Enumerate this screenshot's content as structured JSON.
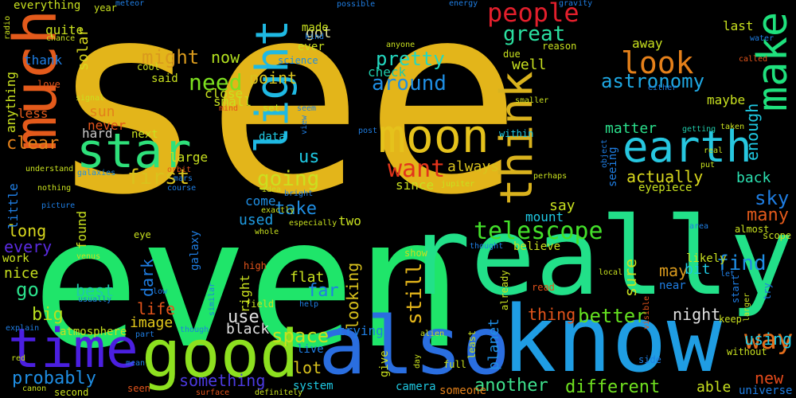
{
  "words": [
    {
      "text": "see",
      "color": "#e3b51a"
    },
    {
      "text": "even",
      "color": "#1fe56a"
    },
    {
      "text": "really",
      "color": "#22e089"
    },
    {
      "text": "know",
      "color": "#1f9de3"
    },
    {
      "text": "also",
      "color": "#2a6ee0"
    },
    {
      "text": "good",
      "color": "#8de01f"
    },
    {
      "text": "much",
      "color": "#e35a1b"
    },
    {
      "text": "time",
      "color": "#4b1fe0"
    },
    {
      "text": "star",
      "color": "#2ee07a"
    },
    {
      "text": "moon",
      "color": "#e5c21c"
    },
    {
      "text": "earth",
      "color": "#27c7e0"
    },
    {
      "text": "make",
      "color": "#1fe07d"
    },
    {
      "text": "think",
      "color": "#d9b21d"
    },
    {
      "text": "light",
      "color": "#1fb9e3"
    },
    {
      "text": "look",
      "color": "#e5801a"
    },
    {
      "text": "people",
      "color": "#e31f2c"
    },
    {
      "text": "want",
      "color": "#e3341b"
    },
    {
      "text": "telescope",
      "color": "#43e02a"
    },
    {
      "text": "way",
      "color": "#e36d1b"
    },
    {
      "text": "astronomy",
      "color": "#1fa8e3"
    },
    {
      "text": "pretty",
      "color": "#23d8c0"
    },
    {
      "text": "around",
      "color": "#1f8ee3"
    },
    {
      "text": "great",
      "color": "#2be0a0"
    },
    {
      "text": "need",
      "color": "#7de01f"
    },
    {
      "text": "might",
      "color": "#d99a1d"
    },
    {
      "text": "now",
      "color": "#b2e01f"
    },
    {
      "text": "first",
      "color": "#d9c21d"
    },
    {
      "text": "going",
      "color": "#cbe01f"
    },
    {
      "text": "better",
      "color": "#64e01f"
    },
    {
      "text": "probably",
      "color": "#1f8ee3"
    },
    {
      "text": "clear",
      "color": "#e3801a"
    },
    {
      "text": "still",
      "color": "#e3b51a"
    },
    {
      "text": "something",
      "color": "#4b3ae0"
    },
    {
      "text": "another",
      "color": "#3ee08c"
    },
    {
      "text": "different",
      "color": "#6fe01f"
    },
    {
      "text": "space",
      "color": "#c8e01f"
    },
    {
      "text": "take",
      "color": "#1f8ee3"
    },
    {
      "text": "sky",
      "color": "#1f7ee3"
    },
    {
      "text": "many",
      "color": "#e35a1b"
    },
    {
      "text": "find",
      "color": "#1f8ee3"
    },
    {
      "text": "actually",
      "color": "#d9d81d"
    },
    {
      "text": "back",
      "color": "#2be0b0"
    },
    {
      "text": "enough",
      "color": "#1fc9e3"
    },
    {
      "text": "matter",
      "color": "#2be08c"
    },
    {
      "text": "night",
      "color": "#e0e0e0"
    },
    {
      "text": "thing",
      "color": "#e3541b"
    },
    {
      "text": "new",
      "color": "#e34a1b"
    },
    {
      "text": "able",
      "color": "#c8e01f"
    },
    {
      "text": "using",
      "color": "#1fc9e3"
    },
    {
      "text": "universe",
      "color": "#1f7ee3"
    },
    {
      "text": "lot",
      "color": "#d9c21d"
    },
    {
      "text": "life",
      "color": "#e3541b"
    },
    {
      "text": "image",
      "color": "#e3c81a"
    },
    {
      "text": "go",
      "color": "#2be08c"
    },
    {
      "text": "long",
      "color": "#d9d81d"
    },
    {
      "text": "every",
      "color": "#5a2be0"
    },
    {
      "text": "nice",
      "color": "#c8e01f"
    },
    {
      "text": "big",
      "color": "#b7e01f"
    },
    {
      "text": "best",
      "color": "#1fc9a8"
    },
    {
      "text": "dark",
      "color": "#1f7ee3"
    },
    {
      "text": "may",
      "color": "#d99a1d"
    },
    {
      "text": "sure",
      "color": "#c8e01f"
    },
    {
      "text": "far",
      "color": "#1f7ee3"
    },
    {
      "text": "looking",
      "color": "#d9c21d"
    },
    {
      "text": "use",
      "color": "#e0e0e0"
    },
    {
      "text": "black",
      "color": "#e0e0e0"
    },
    {
      "text": "used",
      "color": "#1f9de3"
    },
    {
      "text": "us",
      "color": "#1fc9e3"
    },
    {
      "text": "flat",
      "color": "#c8e01f"
    },
    {
      "text": "point",
      "color": "#d9c21d"
    },
    {
      "text": "got",
      "color": "#e0e0a0"
    },
    {
      "text": "solar",
      "color": "#d9d81d"
    },
    {
      "text": "sun",
      "color": "#e3801a"
    },
    {
      "text": "never",
      "color": "#e3541b"
    },
    {
      "text": "large",
      "color": "#c8e01f"
    },
    {
      "text": "hard",
      "color": "#c8c8c8"
    },
    {
      "text": "next",
      "color": "#c8e01f"
    },
    {
      "text": "said",
      "color": "#c8e01f"
    },
    {
      "text": "close",
      "color": "#c8e01f"
    },
    {
      "text": "small",
      "color": "#c8e01f"
    },
    {
      "text": "well",
      "color": "#c8e01f"
    },
    {
      "text": "check",
      "color": "#1fc9a8"
    },
    {
      "text": "since",
      "color": "#c8e01f"
    },
    {
      "text": "always",
      "color": "#d9c21d"
    },
    {
      "text": "say",
      "color": "#c8e01f"
    },
    {
      "text": "mount",
      "color": "#1fc9e3"
    },
    {
      "text": "bit",
      "color": "#1fc9e3"
    },
    {
      "text": "planet",
      "color": "#1f8ee3"
    },
    {
      "text": "maybe",
      "color": "#c8e01f"
    },
    {
      "text": "last",
      "color": "#c8e01f"
    },
    {
      "text": "away",
      "color": "#c8e01f"
    },
    {
      "text": "made",
      "color": "#c8e01f"
    },
    {
      "text": "ever",
      "color": "#c8e01f"
    },
    {
      "text": "quite",
      "color": "#c8e01f"
    },
    {
      "text": "thank",
      "color": "#1f7ee3"
    },
    {
      "text": "less",
      "color": "#e35a1b"
    },
    {
      "text": "anything",
      "color": "#c8e01f"
    },
    {
      "text": "little",
      "color": "#1f7ee3"
    },
    {
      "text": "found",
      "color": "#c8e01f"
    },
    {
      "text": "work",
      "color": "#c8e01f"
    },
    {
      "text": "atmosphere",
      "color": "#c8e01f"
    },
    {
      "text": "galaxy",
      "color": "#1f7ee3"
    },
    {
      "text": "right",
      "color": "#c8e01f"
    },
    {
      "text": "come",
      "color": "#1f8ee3"
    },
    {
      "text": "data",
      "color": "#1fc9e3"
    },
    {
      "text": "two",
      "color": "#c8e01f"
    },
    {
      "text": "likely",
      "color": "#c8e01f"
    },
    {
      "text": "trying",
      "color": "#1f7ee3"
    },
    {
      "text": "live",
      "color": "#1f7ee3"
    },
    {
      "text": "system",
      "color": "#1fc9e3"
    },
    {
      "text": "camera",
      "color": "#1fc9e3"
    },
    {
      "text": "someone",
      "color": "#e3801a"
    },
    {
      "text": "give",
      "color": "#c8e01f"
    },
    {
      "text": "believe",
      "color": "#c8e01f"
    },
    {
      "text": "seeing",
      "color": "#1f7ee3"
    },
    {
      "text": "eyepiece",
      "color": "#c8e01f"
    },
    {
      "text": "everything",
      "color": "#c8e01f"
    },
    {
      "text": "year",
      "color": "#c8e01f"
    },
    {
      "text": "science",
      "color": "#1f8ee3"
    },
    {
      "text": "love",
      "color": "#e3541b"
    },
    {
      "text": "cool",
      "color": "#c8e01f"
    },
    {
      "text": "reason",
      "color": "#c8e01f"
    },
    {
      "text": "due",
      "color": "#c8e01f"
    },
    {
      "text": "kind",
      "color": "#1f7ee3"
    },
    {
      "text": "possible",
      "color": "#1f7ee3"
    },
    {
      "text": "energy",
      "color": "#1f7ee3"
    },
    {
      "text": "gravity",
      "color": "#1f7ee3"
    },
    {
      "text": "meteor",
      "color": "#1f7ee3"
    },
    {
      "text": "radio",
      "color": "#c8e01f"
    },
    {
      "text": "chance",
      "color": "#c8e01f"
    },
    {
      "text": "signal",
      "color": "#c8e01f"
    },
    {
      "text": "water",
      "color": "#1f7ee3"
    },
    {
      "text": "called",
      "color": "#e3541b"
    },
    {
      "text": "smaller",
      "color": "#c8e01f"
    },
    {
      "text": "either",
      "color": "#1f7ee3"
    },
    {
      "text": "seem",
      "color": "#1f7ee3"
    },
    {
      "text": "set",
      "color": "#c8e01f"
    },
    {
      "text": "mind",
      "color": "#e3541b"
    },
    {
      "text": "within",
      "color": "#1fc9e3"
    },
    {
      "text": "post",
      "color": "#1f7ee3"
    },
    {
      "text": "view",
      "color": "#1f7ee3"
    },
    {
      "text": "object",
      "color": "#1f7ee3"
    },
    {
      "text": "real",
      "color": "#c8e01f"
    },
    {
      "text": "put",
      "color": "#c8e01f"
    },
    {
      "text": "taken",
      "color": "#c8e01f"
    },
    {
      "text": "getting",
      "color": "#1fc9a8"
    },
    {
      "text": "anyone",
      "color": "#c8e01f"
    },
    {
      "text": "galaxies",
      "color": "#1f8ee3"
    },
    {
      "text": "understand",
      "color": "#c8e01f"
    },
    {
      "text": "nothing",
      "color": "#c8e01f"
    },
    {
      "text": "picture",
      "color": "#1f7ee3"
    },
    {
      "text": "course",
      "color": "#1f7ee3"
    },
    {
      "text": "orbit",
      "color": "#e3541b"
    },
    {
      "text": "mars",
      "color": "#1f7ee3"
    },
    {
      "text": "idea",
      "color": "#c8e01f"
    },
    {
      "text": "bright",
      "color": "#1f7ee3"
    },
    {
      "text": "jupiter",
      "color": "#c8e01f"
    },
    {
      "text": "exactly",
      "color": "#c8e01f"
    },
    {
      "text": "whole",
      "color": "#c8e01f"
    },
    {
      "text": "especially",
      "color": "#c8e01f"
    },
    {
      "text": "perhaps",
      "color": "#c8e01f"
    },
    {
      "text": "eye",
      "color": "#c8e01f"
    },
    {
      "text": "high",
      "color": "#e3541b"
    },
    {
      "text": "venus",
      "color": "#c8e01f"
    },
    {
      "text": "low",
      "color": "#1f7ee3"
    },
    {
      "text": "usually",
      "color": "#1f7ee3"
    },
    {
      "text": "explain",
      "color": "#1f7ee3"
    },
    {
      "text": "part",
      "color": "#1f7ee3"
    },
    {
      "text": "though",
      "color": "#1f7ee3"
    },
    {
      "text": "field",
      "color": "#c8e01f"
    },
    {
      "text": "help",
      "color": "#1f7ee3"
    },
    {
      "text": "similar",
      "color": "#1f7ee3"
    },
    {
      "text": "show",
      "color": "#c8e01f"
    },
    {
      "text": "thought",
      "color": "#1f7ee3"
    },
    {
      "text": "alien",
      "color": "#c8e01f"
    },
    {
      "text": "already",
      "color": "#c8e01f"
    },
    {
      "text": "least",
      "color": "#c8e01f"
    },
    {
      "text": "full",
      "color": "#c8e01f"
    },
    {
      "text": "read",
      "color": "#e3541b"
    },
    {
      "text": "local",
      "color": "#c8e01f"
    },
    {
      "text": "near",
      "color": "#1f7ee3"
    },
    {
      "text": "visible",
      "color": "#e3541b"
    },
    {
      "text": "let",
      "color": "#1f7ee3"
    },
    {
      "text": "start",
      "color": "#1f7ee3"
    },
    {
      "text": "larger",
      "color": "#c8e01f"
    },
    {
      "text": "keep",
      "color": "#c8e01f"
    },
    {
      "text": "without",
      "color": "#c8e01f"
    },
    {
      "text": "area",
      "color": "#1f7ee3"
    },
    {
      "text": "almost",
      "color": "#c8e01f"
    },
    {
      "text": "scope",
      "color": "#c8e01f"
    },
    {
      "text": "try",
      "color": "#1f7ee3"
    },
    {
      "text": "red",
      "color": "#c8e01f"
    },
    {
      "text": "mean",
      "color": "#1f7ee3"
    },
    {
      "text": "day",
      "color": "#c8e01f"
    },
    {
      "text": "side",
      "color": "#1f7ee3"
    },
    {
      "text": "seen",
      "color": "#e3541b"
    },
    {
      "text": "second",
      "color": "#c8e01f"
    },
    {
      "text": "surface",
      "color": "#e3541b"
    },
    {
      "text": "definitely",
      "color": "#c8e01f"
    },
    {
      "text": "canon",
      "color": "#c8e01f"
    }
  ]
}
